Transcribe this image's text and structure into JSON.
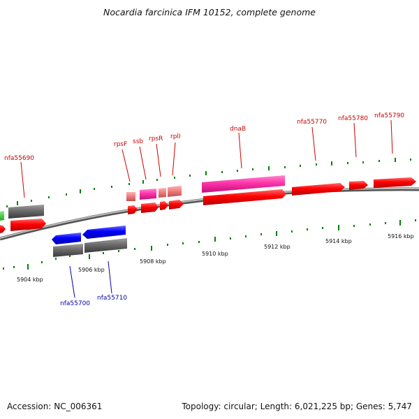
{
  "title": "Nocardia farcinica IFM 10152, complete genome",
  "footer": {
    "accession": "Accession: NC_006361",
    "summary": "Topology: circular; Length: 6,021,225 bp; Genes: 5,747"
  },
  "colors": {
    "plus_strand_gene": "#ff0000",
    "minus_strand_gene": "#0000ff",
    "rrna_like": "#f08080",
    "pink_gene": "#ff33aa",
    "gray_gene": "#707070",
    "green_gene": "#33cc33",
    "tick": "#008000",
    "label_plus": "#cc0000",
    "label_minus": "#0000aa",
    "backbone": "#888888"
  },
  "axis_labels": [
    "5904 kbp",
    "5906 kbp",
    "5908 kbp",
    "5910 kbp",
    "5912 kbp",
    "5914 kbp",
    "5916 kbp"
  ],
  "gene_labels": {
    "nfa55690": "nfa55690",
    "rpsF": "rpsF",
    "ssb": "ssb",
    "rpsR": "rpsR",
    "rplI": "rplI",
    "dnaB": "dnaB",
    "nfa55770": "nfa55770",
    "nfa55780": "nfa55780",
    "nfa55790": "nfa55790",
    "nfa55700": "nfa55700",
    "nfa55710": "nfa55710"
  }
}
